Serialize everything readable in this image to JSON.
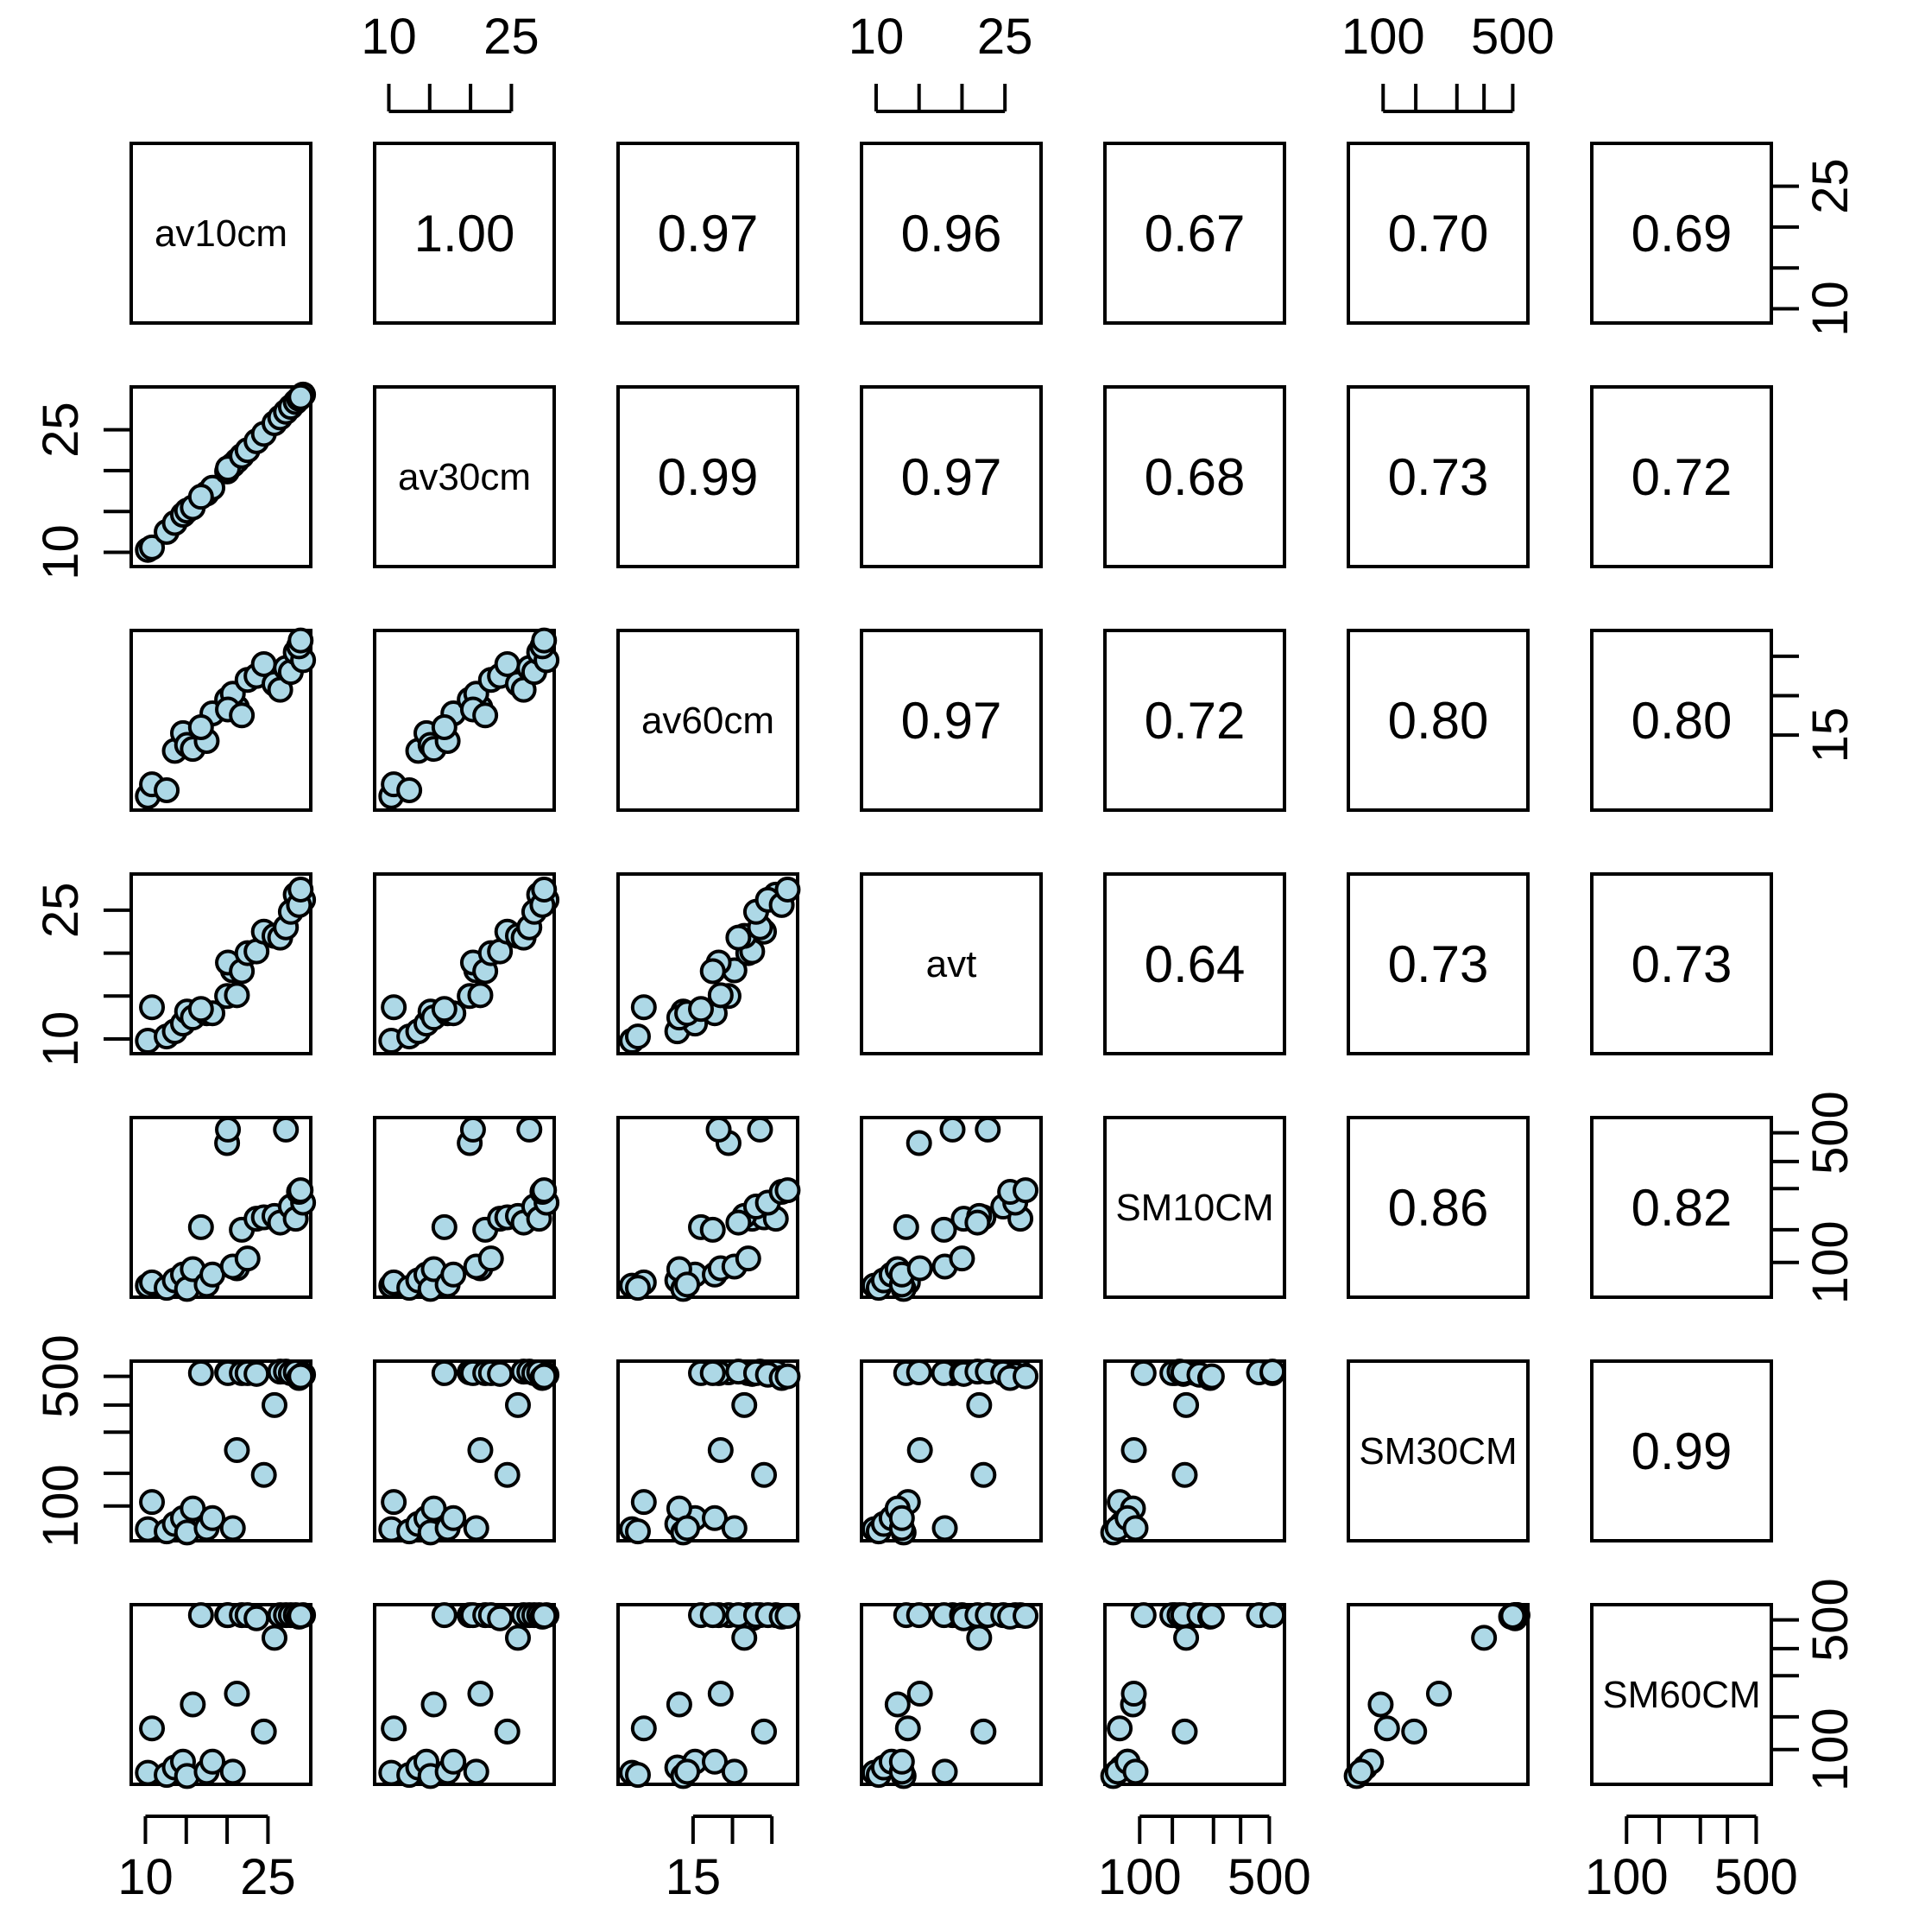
{
  "chart_data": {
    "type": "scatter",
    "title": "",
    "variables": [
      "av10cm",
      "av30cm",
      "av60cm",
      "avt",
      "SM10CM",
      "SM30CM",
      "SM60CM"
    ],
    "axis_scale": [
      "linear",
      "linear",
      "linear",
      "linear",
      "log",
      "log",
      "log"
    ],
    "ranges": [
      [
        9.0,
        29.5
      ],
      [
        9.0,
        29.5
      ],
      [
        11.5,
        20.0
      ],
      [
        9.0,
        28.5
      ],
      [
        70,
        560
      ],
      [
        70,
        560
      ],
      [
        70,
        560
      ]
    ],
    "ticks": [
      [
        10,
        15,
        20,
        25
      ],
      [
        10,
        15,
        20,
        25
      ],
      [
        15,
        17,
        19
      ],
      [
        10,
        15,
        20,
        25
      ],
      [
        100,
        150,
        250,
        350,
        500
      ],
      [
        100,
        150,
        250,
        350,
        500
      ],
      [
        100,
        150,
        250,
        350,
        500
      ]
    ],
    "tick_labels": [
      [
        "10",
        "",
        "",
        "25"
      ],
      [
        "10",
        "",
        "",
        "25"
      ],
      [
        "15",
        "",
        ""
      ],
      [
        "10",
        "",
        "",
        "25"
      ],
      [
        "100",
        "",
        "",
        "",
        "500"
      ],
      [
        "100",
        "",
        "",
        "",
        "500"
      ],
      [
        "100",
        "",
        "",
        "",
        "500"
      ]
    ],
    "correlations": [
      [
        null,
        1.0,
        0.97,
        0.96,
        0.67,
        0.7,
        0.69
      ],
      [
        null,
        null,
        0.99,
        0.97,
        0.68,
        0.73,
        0.72
      ],
      [
        null,
        null,
        null,
        0.97,
        0.72,
        0.8,
        0.8
      ],
      [
        null,
        null,
        null,
        null,
        0.64,
        0.73,
        0.73
      ],
      [
        null,
        null,
        null,
        null,
        null,
        0.86,
        0.82
      ],
      [
        null,
        null,
        null,
        null,
        null,
        null,
        0.99
      ],
      [
        null,
        null,
        null,
        null,
        null,
        null,
        null
      ]
    ],
    "correlation_labels": [
      [
        "",
        "1.00",
        "0.97",
        "0.96",
        "0.67",
        "0.70",
        "0.69"
      ],
      [
        "",
        "",
        "0.99",
        "0.97",
        "0.68",
        "0.73",
        "0.72"
      ],
      [
        "",
        "",
        "",
        "0.97",
        "0.72",
        "0.80",
        "0.80"
      ],
      [
        "",
        "",
        "",
        "",
        "0.64",
        "0.73",
        "0.73"
      ],
      [
        "",
        "",
        "",
        "",
        "",
        "0.86",
        "0.82"
      ],
      [
        "",
        "",
        "",
        "",
        "",
        "",
        "0.99"
      ],
      [
        "",
        "",
        "",
        "",
        "",
        "",
        ""
      ]
    ],
    "observations": [
      {
        "av10cm": 10.3,
        "av30cm": 10.3,
        "av60cm": 11.9,
        "avt": 9.8,
        "SM10CM": 75,
        "SM30CM": 75,
        "SM60CM": 75
      },
      {
        "av10cm": 10.8,
        "av30cm": 10.6,
        "av60cm": 12.5,
        "avt": 13.7,
        "SM10CM": 78,
        "SM30CM": 105,
        "SM60CM": 130
      },
      {
        "av10cm": 12.6,
        "av30cm": 12.5,
        "av60cm": 12.2,
        "avt": 10.3,
        "SM10CM": 73,
        "SM30CM": 73,
        "SM60CM": 73
      },
      {
        "av10cm": 13.6,
        "av30cm": 13.6,
        "av60cm": 14.2,
        "avt": 10.9,
        "SM10CM": 80,
        "SM30CM": 80,
        "SM60CM": 80
      },
      {
        "av10cm": 14.6,
        "av30cm": 14.6,
        "av60cm": 15.1,
        "avt": 11.8,
        "SM10CM": 86,
        "SM30CM": 86,
        "SM60CM": 86
      },
      {
        "av10cm": 15.1,
        "av30cm": 15.1,
        "av60cm": 14.5,
        "avt": 13.2,
        "SM10CM": 72,
        "SM30CM": 72,
        "SM60CM": 72
      },
      {
        "av10cm": 15.8,
        "av30cm": 15.5,
        "av60cm": 14.3,
        "avt": 12.5,
        "SM10CM": 92,
        "SM30CM": 97,
        "SM60CM": 175
      },
      {
        "av10cm": 17.5,
        "av30cm": 17.2,
        "av60cm": 14.7,
        "avt": 13.0,
        "SM10CM": 76,
        "SM30CM": 76,
        "SM60CM": 76
      },
      {
        "av10cm": 18.2,
        "av30cm": 17.9,
        "av60cm": 16.1,
        "avt": 13.0,
        "SM10CM": 86,
        "SM30CM": 86,
        "SM60CM": 86
      },
      {
        "av10cm": 16.8,
        "av30cm": 16.8,
        "av60cm": 15.4,
        "avt": 13.5,
        "SM10CM": 155,
        "SM30CM": 520,
        "SM60CM": 530
      },
      {
        "av10cm": 20.0,
        "av30cm": 19.9,
        "av60cm": 16.8,
        "avt": 15.0,
        "SM10CM": 440,
        "SM30CM": 525,
        "SM60CM": 530
      },
      {
        "av10cm": 21.2,
        "av30cm": 21.2,
        "av60cm": 16.4,
        "avt": 15.1,
        "SM10CM": 93,
        "SM30CM": 200,
        "SM60CM": 200
      },
      {
        "av10cm": 20.7,
        "av30cm": 20.7,
        "av60cm": 17.1,
        "avt": 18.0,
        "SM10CM": 95,
        "SM30CM": 76,
        "SM60CM": 76
      },
      {
        "av10cm": 20.1,
        "av30cm": 20.3,
        "av60cm": 16.3,
        "avt": 18.9,
        "SM10CM": 520,
        "SM30CM": 520,
        "SM60CM": 530
      },
      {
        "av10cm": 21.8,
        "av30cm": 21.8,
        "av60cm": 16.0,
        "avt": 17.9,
        "SM10CM": 150,
        "SM30CM": 520,
        "SM60CM": 530
      },
      {
        "av10cm": 22.5,
        "av30cm": 22.5,
        "av60cm": 17.8,
        "avt": 20.0,
        "SM10CM": 105,
        "SM30CM": 520,
        "SM60CM": 530
      },
      {
        "av10cm": 23.6,
        "av30cm": 23.6,
        "av60cm": 18.0,
        "avt": 20.2,
        "SM10CM": 172,
        "SM30CM": 515,
        "SM60CM": 510
      },
      {
        "av10cm": 24.5,
        "av30cm": 24.5,
        "av60cm": 18.6,
        "avt": 22.5,
        "SM10CM": 175,
        "SM30CM": 147,
        "SM60CM": 125
      },
      {
        "av10cm": 25.8,
        "av30cm": 25.8,
        "av60cm": 17.6,
        "avt": 22.0,
        "SM10CM": 178,
        "SM30CM": 350,
        "SM60CM": 400
      },
      {
        "av10cm": 26.5,
        "av30cm": 26.5,
        "av60cm": 17.3,
        "avt": 21.8,
        "SM10CM": 164,
        "SM30CM": 530,
        "SM60CM": 530
      },
      {
        "av10cm": 27.2,
        "av30cm": 27.2,
        "av60cm": 18.4,
        "avt": 23.0,
        "SM10CM": 520,
        "SM30CM": 530,
        "SM60CM": 530
      },
      {
        "av10cm": 27.8,
        "av30cm": 27.8,
        "av60cm": 18.2,
        "avt": 24.8,
        "SM10CM": 200,
        "SM30CM": 520,
        "SM60CM": 530
      },
      {
        "av10cm": 28.4,
        "av30cm": 28.4,
        "av60cm": 19.2,
        "avt": 26.8,
        "SM10CM": 172,
        "SM30CM": 525,
        "SM60CM": 530
      },
      {
        "av10cm": 29.3,
        "av30cm": 29.3,
        "av60cm": 18.8,
        "avt": 26.2,
        "SM10CM": 210,
        "SM30CM": 510,
        "SM60CM": 530
      },
      {
        "av10cm": 28.8,
        "av30cm": 28.8,
        "av60cm": 19.5,
        "avt": 25.6,
        "SM10CM": 240,
        "SM30CM": 490,
        "SM60CM": 520
      },
      {
        "av10cm": 29.0,
        "av30cm": 29.0,
        "av60cm": 19.8,
        "avt": 27.4,
        "SM10CM": 245,
        "SM30CM": 500,
        "SM60CM": 525
      }
    ],
    "colors": {
      "point_fill": "#add8e6",
      "point_stroke": "#000000",
      "frame": "#000000"
    },
    "grid": false,
    "legend": "none"
  }
}
